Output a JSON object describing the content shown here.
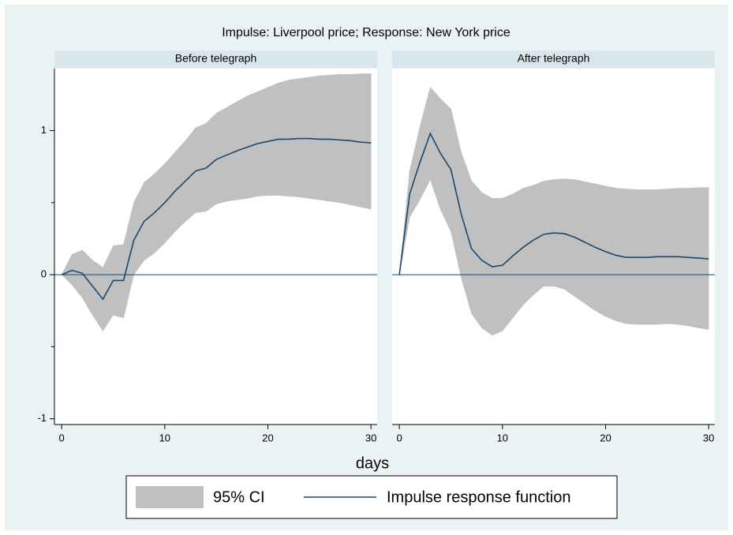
{
  "chart_data": {
    "type": "line",
    "title": "Impulse: Liverpool price; Response: New York price",
    "x_label": "days",
    "series": [
      {
        "name": "95% CI",
        "color": "#c0c0c0"
      },
      {
        "name": "Impulse response function",
        "color": "#1a476f"
      }
    ],
    "xlim": [
      -0.7,
      30.6
    ],
    "xticks": [
      0,
      10,
      20,
      30
    ],
    "ylim": [
      -1.04,
      1.43
    ],
    "yticks": [
      -1,
      0,
      1
    ],
    "yminor": [
      -0.5,
      0.5
    ],
    "yline": 0,
    "panels": [
      {
        "subtitle": "Before telegraph",
        "x": [
          0,
          1,
          2,
          3,
          4,
          5,
          6,
          7,
          8,
          9,
          10,
          11,
          12,
          13,
          14,
          15,
          16,
          17,
          18,
          19,
          20,
          21,
          22,
          23,
          24,
          25,
          26,
          27,
          28,
          29,
          30
        ],
        "irf": [
          0,
          0.03,
          0.01,
          -0.08,
          -0.17,
          -0.04,
          -0.04,
          0.24,
          0.37,
          0.43,
          0.5,
          0.58,
          0.65,
          0.72,
          0.74,
          0.8,
          0.83,
          0.86,
          0.885,
          0.91,
          0.925,
          0.94,
          0.94,
          0.945,
          0.945,
          0.94,
          0.94,
          0.935,
          0.93,
          0.92,
          0.915
        ],
        "ci_upper": [
          0,
          0.14,
          0.17,
          0.1,
          0.05,
          0.2,
          0.21,
          0.5,
          0.64,
          0.7,
          0.77,
          0.85,
          0.93,
          1.02,
          1.05,
          1.12,
          1.16,
          1.2,
          1.24,
          1.27,
          1.3,
          1.33,
          1.35,
          1.36,
          1.37,
          1.38,
          1.385,
          1.39,
          1.39,
          1.395,
          1.395
        ],
        "ci_lower": [
          0,
          -0.07,
          -0.16,
          -0.28,
          -0.39,
          -0.28,
          -0.3,
          0,
          0.1,
          0.15,
          0.22,
          0.3,
          0.37,
          0.43,
          0.44,
          0.49,
          0.51,
          0.52,
          0.53,
          0.545,
          0.55,
          0.55,
          0.545,
          0.54,
          0.53,
          0.52,
          0.51,
          0.5,
          0.485,
          0.47,
          0.455
        ]
      },
      {
        "subtitle": "After telegraph",
        "x": [
          0,
          1,
          2,
          3,
          4,
          5,
          6,
          7,
          8,
          9,
          10,
          11,
          12,
          13,
          14,
          15,
          16,
          17,
          18,
          19,
          20,
          21,
          22,
          23,
          24,
          25,
          26,
          27,
          28,
          29,
          30
        ],
        "irf": [
          0,
          0.56,
          0.78,
          0.98,
          0.84,
          0.73,
          0.42,
          0.18,
          0.1,
          0.055,
          0.065,
          0.13,
          0.19,
          0.24,
          0.28,
          0.29,
          0.285,
          0.26,
          0.225,
          0.19,
          0.16,
          0.135,
          0.12,
          0.12,
          0.12,
          0.125,
          0.125,
          0.125,
          0.12,
          0.115,
          0.11
        ],
        "ci_upper": [
          0,
          0.72,
          1.03,
          1.3,
          1.22,
          1.15,
          0.85,
          0.65,
          0.57,
          0.53,
          0.53,
          0.56,
          0.6,
          0.62,
          0.65,
          0.66,
          0.665,
          0.66,
          0.645,
          0.63,
          0.615,
          0.6,
          0.595,
          0.59,
          0.59,
          0.59,
          0.595,
          0.6,
          0.6,
          0.605,
          0.605
        ],
        "ci_lower": [
          0,
          0.4,
          0.52,
          0.66,
          0.45,
          0.3,
          -0.02,
          -0.27,
          -0.37,
          -0.42,
          -0.39,
          -0.3,
          -0.21,
          -0.14,
          -0.08,
          -0.08,
          -0.1,
          -0.15,
          -0.2,
          -0.25,
          -0.29,
          -0.32,
          -0.34,
          -0.345,
          -0.345,
          -0.345,
          -0.34,
          -0.345,
          -0.355,
          -0.37,
          -0.38
        ]
      }
    ]
  }
}
